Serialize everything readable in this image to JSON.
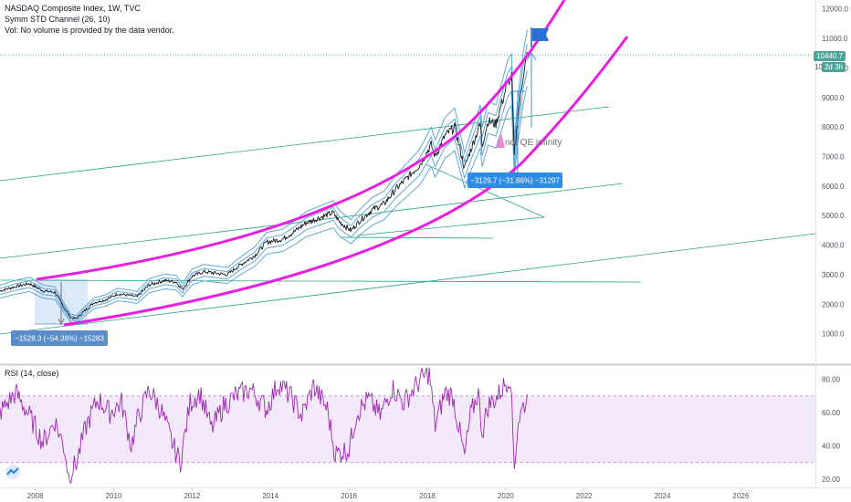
{
  "legend": {
    "title": "NASDAQ Composite Index, 1W, TVC",
    "indicator": "Symm STD Channel (26, 10)",
    "volume_note": "Vol: No volume is provided by the data vendor.",
    "rsi_label": "RSI (14, close)"
  },
  "price_tags": {
    "last": "10440.7",
    "countdown": "2d 3h",
    "partial": "10"
  },
  "annotations": {
    "drawdown_2008": "−1528.3 (−54.38%) −15283",
    "drawdown_2020": "−3129.7 (−31.86%) −31297",
    "note": "not QE infinity"
  },
  "colors": {
    "price": "#131722",
    "channel": "#5fa7d4",
    "magenta": "#e81ee0",
    "teal_lines": "#26a68a",
    "rsi_line": "#9c27b0",
    "rsi_band": "#ecd6f8",
    "last_price": "#4aa69a",
    "measure_box": "#5b8ec9",
    "measure_blue": "#2d8ce6"
  },
  "icons": {
    "logo": "tradingview-logo-icon",
    "flag": "flag-icon",
    "arrow": "arrow-up-icon"
  },
  "chart_data": [
    {
      "type": "line",
      "title": "NASDAQ Composite Index, 1W, TVC",
      "x_ticks": [
        "2008",
        "2010",
        "2012",
        "2014",
        "2016",
        "2018",
        "2020",
        "2022",
        "2024",
        "2026"
      ],
      "y_ticks": [
        1000,
        2000,
        3000,
        4000,
        5000,
        6000,
        7000,
        8000,
        9000,
        10000,
        11000,
        12000
      ],
      "ylim": [
        0,
        12300
      ],
      "xlim": [
        2007.1,
        2027.9
      ],
      "series": [
        {
          "x": [
            2007.1,
            2007.5,
            2007.85,
            2008.2,
            2008.5,
            2008.75,
            2008.9,
            2009.05,
            2009.2,
            2009.5,
            2009.8,
            2010.1,
            2010.4,
            2010.6,
            2010.9,
            2011.3,
            2011.6,
            2011.75,
            2012.0,
            2012.3,
            2012.6,
            2012.9,
            2013.2,
            2013.6,
            2013.9,
            2014.3,
            2014.6,
            2014.9,
            2015.3,
            2015.6,
            2015.75,
            2016.05,
            2016.3,
            2016.6,
            2016.9,
            2017.2,
            2017.5,
            2017.8,
            2018.1,
            2018.2,
            2018.45,
            2018.7,
            2018.95,
            2019.1,
            2019.35,
            2019.4,
            2019.55,
            2019.75,
            2019.9,
            2020.05,
            2020.15,
            2020.22,
            2020.3,
            2020.45,
            2020.55
          ],
          "values": [
            2450,
            2600,
            2700,
            2450,
            2400,
            1850,
            1550,
            1500,
            1700,
            2050,
            2150,
            2350,
            2300,
            2250,
            2650,
            2800,
            2750,
            2500,
            2950,
            3100,
            3050,
            3000,
            3300,
            3650,
            4100,
            4200,
            4450,
            4750,
            4950,
            5100,
            4800,
            4500,
            4850,
            5200,
            5400,
            5900,
            6300,
            6700,
            7400,
            7000,
            7700,
            8000,
            6600,
            7200,
            8100,
            7400,
            8200,
            8100,
            8800,
            9500,
            9700,
            7000,
            8200,
            9800,
            10440
          ]
        }
      ],
      "annotations": [
        "−1528.3 (−54.38%) −15283",
        "−3129.7 (−31.86%) −31297",
        "not QE infinity"
      ],
      "last_price": 10440.7
    },
    {
      "type": "line",
      "title": "RSI (14, close)",
      "y_ticks": [
        20,
        40,
        60,
        80
      ],
      "ylim": [
        15,
        88
      ],
      "xlim": [
        2007.1,
        2027.9
      ],
      "bands": [
        30,
        70
      ],
      "series": [
        {
          "x": [
            2007.1,
            2007.5,
            2007.85,
            2008.2,
            2008.5,
            2008.75,
            2008.85,
            2009.05,
            2009.3,
            2009.6,
            2009.9,
            2010.2,
            2010.45,
            2010.6,
            2010.9,
            2011.2,
            2011.55,
            2011.7,
            2011.95,
            2012.2,
            2012.5,
            2012.8,
            2013.1,
            2013.5,
            2013.9,
            2014.2,
            2014.5,
            2014.8,
            2015.1,
            2015.45,
            2015.65,
            2016.0,
            2016.2,
            2016.5,
            2016.8,
            2017.1,
            2017.4,
            2017.8,
            2018.05,
            2018.2,
            2018.45,
            2018.65,
            2018.95,
            2019.1,
            2019.3,
            2019.4,
            2019.55,
            2019.8,
            2020.0,
            2020.12,
            2020.22,
            2020.32,
            2020.45,
            2020.55
          ],
          "values": [
            60,
            72,
            58,
            42,
            55,
            38,
            22,
            30,
            52,
            68,
            60,
            66,
            40,
            55,
            74,
            62,
            38,
            30,
            66,
            72,
            50,
            64,
            70,
            74,
            62,
            78,
            70,
            58,
            76,
            62,
            35,
            38,
            60,
            68,
            58,
            75,
            66,
            79,
            84,
            52,
            72,
            70,
            33,
            58,
            72,
            48,
            64,
            70,
            78,
            82,
            28,
            55,
            64,
            68
          ]
        }
      ]
    }
  ]
}
